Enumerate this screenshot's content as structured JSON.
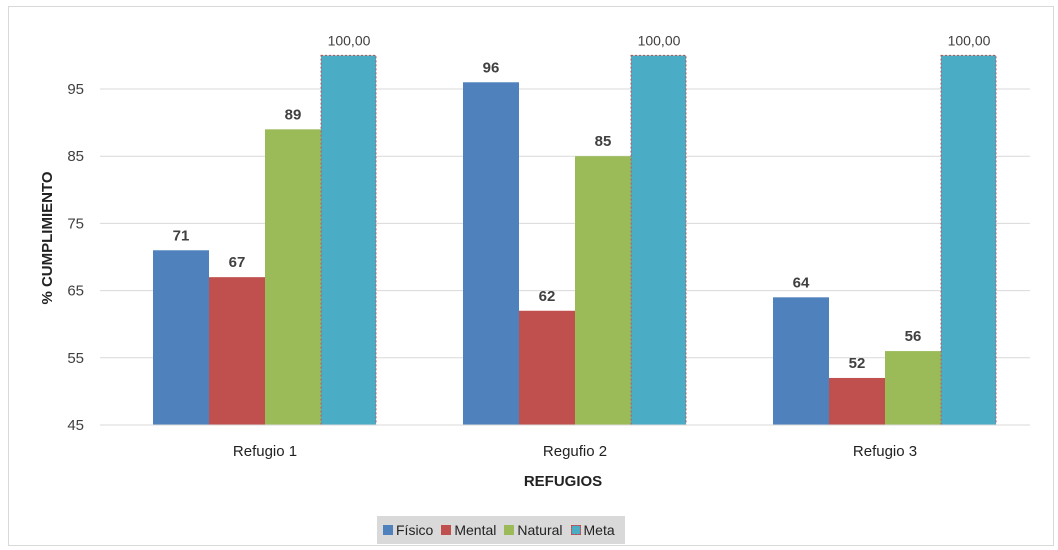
{
  "chart_data": {
    "type": "bar",
    "title": "",
    "xlabel": "REFUGIOS",
    "ylabel": "% CUMPLIMIENTO",
    "ylim": [
      45,
      100
    ],
    "yticks": [
      45,
      55,
      65,
      75,
      85,
      95
    ],
    "grid": true,
    "legend_position": "bottom",
    "categories": [
      "Refugio 1",
      "Regufio 2",
      "Refugio 3"
    ],
    "series": [
      {
        "name": "Físico",
        "values": [
          71,
          96,
          64
        ],
        "labels": [
          "71",
          "96",
          "64"
        ],
        "color": "#4f81bd"
      },
      {
        "name": "Mental",
        "values": [
          67,
          62,
          52
        ],
        "labels": [
          "67",
          "62",
          "52"
        ],
        "color": "#c0504d"
      },
      {
        "name": "Natural",
        "values": [
          89,
          85,
          56
        ],
        "labels": [
          "89",
          "85",
          "56"
        ],
        "color": "#9bbb59"
      },
      {
        "name": "Meta",
        "values": [
          100,
          100,
          100
        ],
        "labels": [
          "100,00",
          "100,00",
          "100,00"
        ],
        "color": "#4bacc6"
      }
    ]
  }
}
